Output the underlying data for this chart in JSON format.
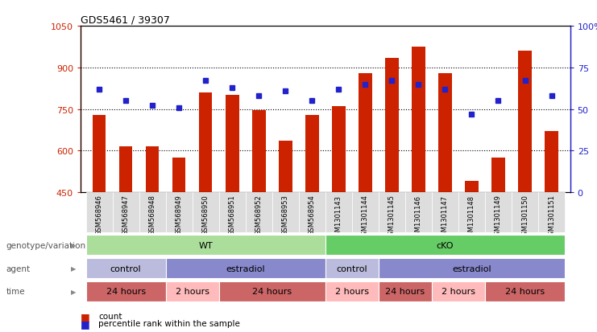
{
  "title": "GDS5461 / 39307",
  "samples": [
    "GSM568946",
    "GSM568947",
    "GSM568948",
    "GSM568949",
    "GSM568950",
    "GSM568951",
    "GSM568952",
    "GSM568953",
    "GSM568954",
    "GSM1301143",
    "GSM1301144",
    "GSM1301145",
    "GSM1301146",
    "GSM1301147",
    "GSM1301148",
    "GSM1301149",
    "GSM1301150",
    "GSM1301151"
  ],
  "counts": [
    730,
    615,
    615,
    575,
    810,
    800,
    745,
    635,
    730,
    760,
    880,
    935,
    975,
    880,
    490,
    575,
    960,
    670
  ],
  "percentile_ranks": [
    62,
    55,
    52,
    51,
    67,
    63,
    58,
    61,
    55,
    62,
    65,
    67,
    65,
    62,
    47,
    55,
    67,
    58
  ],
  "ylim_left": [
    450,
    1050
  ],
  "ylim_right": [
    0,
    100
  ],
  "yticks_left": [
    450,
    600,
    750,
    900,
    1050
  ],
  "yticks_right": [
    0,
    25,
    50,
    75,
    100
  ],
  "ytick_labels_right": [
    "0",
    "25",
    "50",
    "75",
    "100%"
  ],
  "bar_color": "#cc2200",
  "square_color": "#2222cc",
  "left_axis_color": "#cc2200",
  "right_axis_color": "#2222cc",
  "row_groups": {
    "genotype_variation": {
      "label": "genotype/variation",
      "groups": [
        {
          "name": "WT",
          "start": 0,
          "end": 9,
          "color": "#aade9a"
        },
        {
          "name": "cKO",
          "start": 9,
          "end": 18,
          "color": "#66cc66"
        }
      ]
    },
    "agent": {
      "label": "agent",
      "groups": [
        {
          "name": "control",
          "start": 0,
          "end": 3,
          "color": "#bbbbdd"
        },
        {
          "name": "estradiol",
          "start": 3,
          "end": 9,
          "color": "#8888cc"
        },
        {
          "name": "control",
          "start": 9,
          "end": 11,
          "color": "#bbbbdd"
        },
        {
          "name": "estradiol",
          "start": 11,
          "end": 18,
          "color": "#8888cc"
        }
      ]
    },
    "time": {
      "label": "time",
      "groups": [
        {
          "name": "24 hours",
          "start": 0,
          "end": 3,
          "color": "#cc6666"
        },
        {
          "name": "2 hours",
          "start": 3,
          "end": 5,
          "color": "#ffbbbb"
        },
        {
          "name": "24 hours",
          "start": 5,
          "end": 9,
          "color": "#cc6666"
        },
        {
          "name": "2 hours",
          "start": 9,
          "end": 11,
          "color": "#ffbbbb"
        },
        {
          "name": "24 hours",
          "start": 11,
          "end": 13,
          "color": "#cc6666"
        },
        {
          "name": "2 hours",
          "start": 13,
          "end": 15,
          "color": "#ffbbbb"
        },
        {
          "name": "24 hours",
          "start": 15,
          "end": 18,
          "color": "#cc6666"
        }
      ]
    }
  },
  "legend": [
    {
      "label": "count",
      "color": "#cc2200"
    },
    {
      "label": "percentile rank within the sample",
      "color": "#2222cc"
    }
  ]
}
